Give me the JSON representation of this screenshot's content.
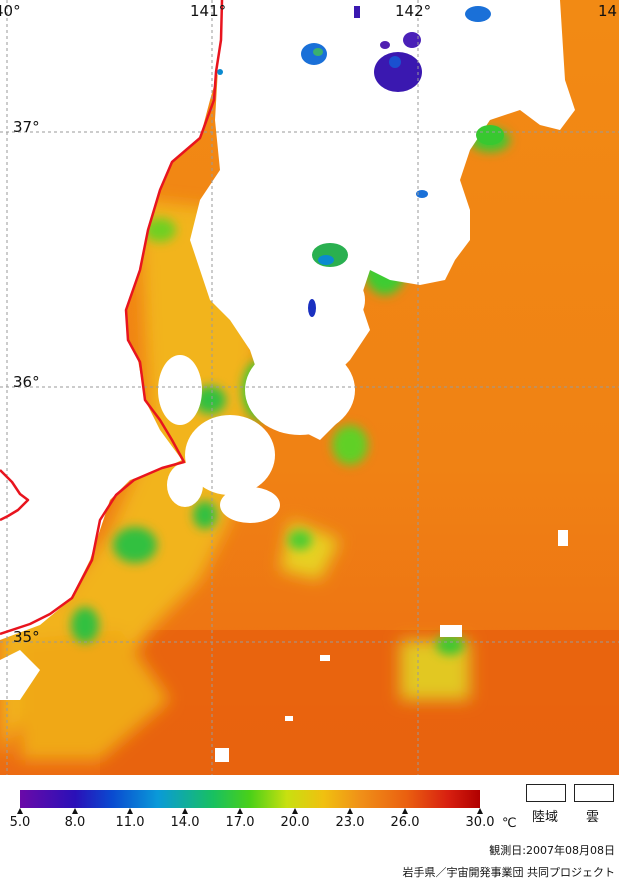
{
  "map": {
    "lon_labels": [
      "40°",
      "141°",
      "142°",
      "14"
    ],
    "lat_labels": [
      "37°",
      "36°",
      "35°"
    ],
    "colors": {
      "land": "#ffffff",
      "cloud": "#ffffff",
      "coastline": "#e8141e",
      "grid": "#9a9a9a"
    }
  },
  "legend": {
    "ticks": [
      "5.0",
      "8.0",
      "11.0",
      "14.0",
      "17.0",
      "20.0",
      "23.0",
      "26.0",
      "30.0"
    ],
    "unit": "℃",
    "land_label": "陸域",
    "cloud_label": "雲",
    "gradient_colors": [
      "#6a0aa8",
      "#2a10b8",
      "#0a4ad0",
      "#0a9ad8",
      "#18c060",
      "#4ad018",
      "#c8e010",
      "#f0c010",
      "#f09018",
      "#ea6010",
      "#d82010",
      "#b00000"
    ]
  },
  "footer": {
    "date": "観測日:2007年08月08日",
    "credit": "岩手県／宇宙開発事業団 共同プロジェクト"
  }
}
